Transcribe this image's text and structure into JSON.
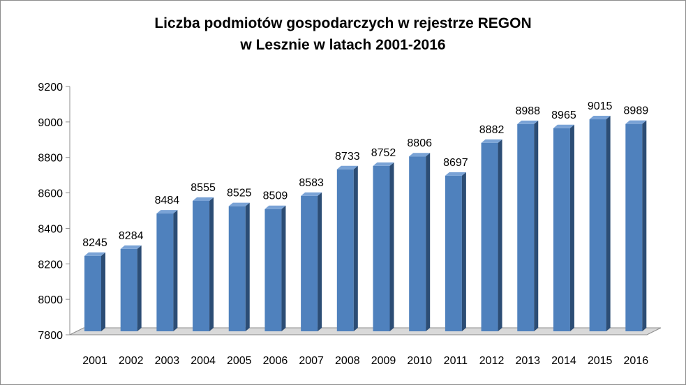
{
  "chart_data": {
    "type": "bar",
    "title": [
      "Liczba podmiotów gospodarczych w rejestrze REGON",
      "w Lesznie w latach 2001-2016"
    ],
    "categories": [
      "2001",
      "2002",
      "2003",
      "2004",
      "2005",
      "2006",
      "2007",
      "2008",
      "2009",
      "2010",
      "2011",
      "2012",
      "2013",
      "2014",
      "2015",
      "2016"
    ],
    "values": [
      8245,
      8284,
      8484,
      8555,
      8525,
      8509,
      8583,
      8733,
      8752,
      8806,
      8697,
      8882,
      8988,
      8965,
      9015,
      8989
    ],
    "ylim": [
      7800,
      9200
    ],
    "yticks": [
      7800,
      8000,
      8200,
      8400,
      8600,
      8800,
      9000,
      9200
    ],
    "xlabel": "",
    "ylabel": "",
    "data_labels": true,
    "grid": false,
    "legend": "none",
    "style": "3d-column",
    "colors": {
      "bar_front": "#4f81bd",
      "bar_side": "#2c4d75",
      "bar_top": "#7aa3d6",
      "floor": "#d9d9d9"
    }
  }
}
